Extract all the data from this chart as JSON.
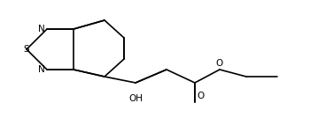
{
  "background": "#ffffff",
  "figsize": [
    3.5,
    1.34
  ],
  "dpi": 100,
  "line_color": "#000000",
  "line_width": 1.2,
  "font_size": 7.5,
  "labels": {
    "N_top": "N",
    "N_bot": "N",
    "S": "S",
    "OH": "OH",
    "O_carbonyl": "O",
    "O_ester": "O"
  }
}
